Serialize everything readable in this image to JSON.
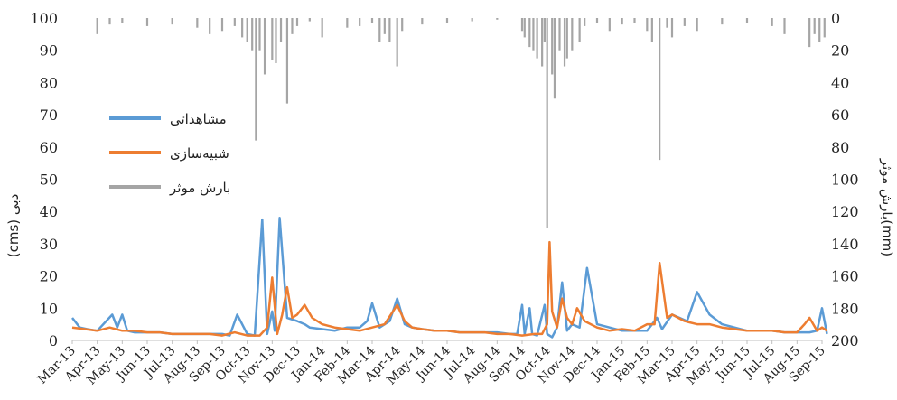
{
  "chart_data": {
    "type": "line",
    "x_axis": {
      "tick_labels": [
        "Mar-13",
        "Apr-13",
        "May-13",
        "Jun-13",
        "Jul-13",
        "Aug-13",
        "Sep-13",
        "Oct-13",
        "Nov-13",
        "Dec-13",
        "Jan-14",
        "Feb-14",
        "Mar-14",
        "Apr-14",
        "May-14",
        "Jun-14",
        "Jul-14",
        "Aug-14",
        "Sep-14",
        "Oct-14",
        "Nov-14",
        "Dec-14",
        "Jan-15",
        "Feb-15",
        "Mar-15",
        "Apr-15",
        "May-15",
        "Jun-15",
        "Jul-15",
        "Aug-15",
        "Sep-15"
      ]
    },
    "y_left": {
      "label": "(cms) دبی",
      "ylim": [
        0,
        100
      ],
      "ticks": [
        0,
        10,
        20,
        30,
        40,
        50,
        60,
        70,
        80,
        90,
        100
      ]
    },
    "y_right": {
      "label": "بارش موثر(mm)",
      "ylim": [
        0,
        200
      ],
      "reversed": true,
      "ticks": [
        0,
        20,
        40,
        60,
        80,
        100,
        120,
        140,
        160,
        180,
        200
      ]
    },
    "legend": {
      "placement": "upper-left"
    },
    "series": [
      {
        "name": "مشاهداتی",
        "color": "#5b9bd5",
        "axis": "left",
        "x": [
          0,
          0.3,
          0.6,
          1,
          1.6,
          1.8,
          2,
          2.2,
          2.5,
          3,
          3.5,
          4,
          4.5,
          5,
          5.5,
          6,
          6.3,
          6.6,
          7,
          7.3,
          7.6,
          7.8,
          8,
          8.1,
          8.3,
          8.6,
          9,
          9.3,
          9.5,
          10,
          10.5,
          11,
          11.5,
          11.8,
          12,
          12.3,
          12.7,
          13,
          13.3,
          13.6,
          14,
          14.5,
          15,
          15.5,
          16,
          16.5,
          17,
          17.5,
          17.8,
          18,
          18.1,
          18.3,
          18.4,
          18.6,
          18.9,
          19,
          19.2,
          19.4,
          19.6,
          19.8,
          20,
          20.3,
          20.6,
          21,
          21.5,
          22,
          22.5,
          23,
          23.2,
          23.4,
          23.6,
          24,
          24.3,
          24.6,
          25,
          25.5,
          26,
          26.5,
          27,
          27.5,
          28,
          28.5,
          29,
          29.5,
          29.8,
          30,
          30.2
        ],
        "values": [
          7,
          4,
          3.5,
          3,
          8,
          4,
          8,
          3,
          2.5,
          2.5,
          2.5,
          2,
          2,
          2,
          2,
          2,
          1.5,
          8,
          2,
          1.5,
          37.5,
          2,
          9,
          3,
          38,
          7,
          6,
          5,
          4,
          3.5,
          3,
          4,
          4,
          6,
          11.5,
          4,
          6,
          13,
          5,
          4,
          3.5,
          3,
          3,
          2.5,
          2.5,
          2.5,
          2.5,
          2,
          2,
          11,
          2,
          10,
          2,
          1.5,
          11,
          2,
          1,
          4,
          18,
          3,
          5,
          4,
          22.5,
          5,
          4,
          3,
          3,
          3,
          5,
          7,
          3.5,
          8,
          7,
          6,
          15,
          8,
          5,
          4,
          3,
          3,
          3,
          2.5,
          2.5,
          2.5,
          3,
          10,
          2
        ]
      },
      {
        "name": "شبیه‌سازی",
        "color": "#ed7d31",
        "axis": "left",
        "x": [
          0,
          0.5,
          1,
          1.5,
          2,
          2.5,
          3,
          3.5,
          4,
          4.5,
          5,
          5.5,
          6,
          6.5,
          7,
          7.5,
          7.8,
          8,
          8.2,
          8.4,
          8.6,
          8.8,
          9,
          9.3,
          9.6,
          10,
          10.5,
          11,
          11.5,
          12,
          12.5,
          13,
          13.3,
          13.6,
          14,
          14.5,
          15,
          15.5,
          16,
          16.5,
          17,
          17.5,
          18,
          18.5,
          18.8,
          19,
          19.1,
          19.2,
          19.4,
          19.6,
          19.8,
          20,
          20.2,
          20.5,
          21,
          21.5,
          22,
          22.5,
          23,
          23.3,
          23.5,
          23.8,
          24,
          24.5,
          25,
          25.5,
          26,
          26.5,
          27,
          27.5,
          28,
          28.5,
          29,
          29.3,
          29.5,
          29.8,
          30,
          30.2
        ],
        "values": [
          4,
          3.5,
          3,
          4,
          3,
          3,
          2.5,
          2.5,
          2,
          2,
          2,
          2,
          1.5,
          2.5,
          1.5,
          1.5,
          4,
          19.5,
          2,
          8,
          16.5,
          7,
          8,
          11,
          7,
          5,
          4,
          3.5,
          3,
          4,
          5,
          11,
          6,
          4,
          3.5,
          3,
          3,
          2.5,
          2.5,
          2.5,
          2,
          2,
          1.5,
          2,
          2,
          5,
          30.5,
          9,
          4,
          13,
          7,
          5,
          10,
          6,
          4,
          3,
          3.5,
          3,
          5,
          5,
          24,
          7,
          8,
          6,
          5,
          5,
          4,
          3.5,
          3,
          3,
          3,
          2.5,
          2.5,
          5,
          7,
          3,
          4,
          3
        ]
      },
      {
        "name": "بارش موثر",
        "color": "#a5a5a5",
        "axis": "right",
        "style": "bars-from-top",
        "x": [
          1,
          1.5,
          2,
          3,
          4,
          5,
          5.5,
          6,
          6.5,
          6.8,
          7,
          7.2,
          7.35,
          7.5,
          7.7,
          8,
          8.15,
          8.35,
          8.6,
          8.8,
          9,
          9.5,
          10,
          11,
          11.5,
          12,
          12.3,
          12.5,
          12.7,
          13,
          13.2,
          14,
          15,
          16,
          17,
          18,
          18.1,
          18.3,
          18.45,
          18.6,
          18.8,
          18.9,
          19,
          19.2,
          19.3,
          19.5,
          19.7,
          19.8,
          20,
          20.3,
          20.5,
          21,
          21.5,
          22,
          22.5,
          23,
          23.2,
          23.5,
          23.8,
          24,
          24.5,
          25,
          26,
          27,
          28,
          28.5,
          29.5,
          29.7,
          29.9,
          30.1
        ],
        "values": [
          10,
          4,
          3,
          5,
          4,
          6,
          10,
          8,
          5,
          12,
          15,
          20,
          76,
          20,
          35,
          26,
          28,
          15,
          53,
          10,
          5,
          2,
          12,
          6,
          5,
          3,
          15,
          10,
          15,
          30,
          8,
          4,
          3,
          2,
          1,
          8,
          12,
          18,
          20,
          25,
          30,
          15,
          130,
          35,
          50,
          20,
          30,
          25,
          20,
          15,
          5,
          3,
          8,
          4,
          3,
          8,
          15,
          88,
          6,
          12,
          5,
          8,
          4,
          3,
          5,
          10,
          18,
          10,
          15,
          12
        ]
      }
    ]
  }
}
